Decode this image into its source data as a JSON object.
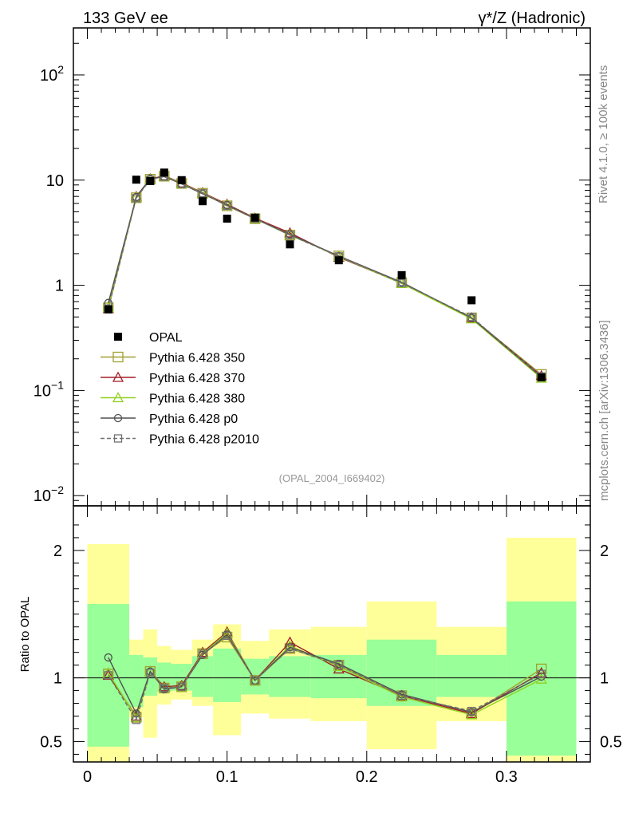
{
  "header": {
    "left_title": "133 GeV ee",
    "right_title": "γ*/Z (Hadronic)",
    "side_label_top": "Rivet 4.1.0, ≥ 100k events",
    "side_label_bottom": "mcplots.cern.ch [arXiv:1306.3436]",
    "analysis_id": "(OPAL_2004_I669402)"
  },
  "colors": {
    "data": "#000000",
    "p350": "#a0a030",
    "p370": "#a01e28",
    "p380": "#90d020",
    "p0": "#505050",
    "p2010": "#707070",
    "band_green": "#99ff99",
    "band_yellow": "#ffff99"
  },
  "chart_data": [
    {
      "type": "scatter",
      "panel": "main",
      "yscale": "log",
      "xlim": [
        -0.01,
        0.36
      ],
      "ylim": [
        0.008,
        280
      ],
      "y_ticks": [
        {
          "base": "10",
          "exp": "2",
          "value": 100
        },
        {
          "base": "10",
          "exp": "",
          "value": 10
        },
        {
          "base": "1",
          "exp": "",
          "value": 1
        },
        {
          "base": "10",
          "exp": "−1",
          "value": 0.1
        },
        {
          "base": "10",
          "exp": "−2",
          "value": 0.01
        }
      ],
      "x": [
        0.015,
        0.035,
        0.045,
        0.055,
        0.0675,
        0.0825,
        0.1,
        0.12,
        0.145,
        0.18,
        0.225,
        0.275,
        0.325
      ],
      "series": [
        {
          "name": "OPAL",
          "key": "data",
          "marker": "filled-square",
          "values": [
            0.59,
            10.1,
            9.8,
            11.8,
            10.0,
            6.3,
            4.3,
            4.4,
            2.45,
            1.73,
            1.25,
            0.72,
            0.133
          ]
        },
        {
          "name": "Pythia 6.428 350",
          "key": "p350",
          "marker": "open-square",
          "values": [
            0.61,
            6.8,
            10.2,
            10.9,
            9.3,
            7.5,
            5.7,
            4.3,
            3.0,
            1.9,
            1.06,
            0.49,
            0.142
          ]
        },
        {
          "name": "Pythia 6.428 370",
          "key": "p370",
          "marker": "open-triangle",
          "values": [
            0.6,
            7.0,
            10.3,
            11.0,
            9.4,
            7.6,
            5.9,
            4.35,
            3.15,
            1.85,
            1.05,
            0.49,
            0.138
          ]
        },
        {
          "name": "Pythia 6.428 380",
          "key": "p380",
          "marker": "open-triangle",
          "values": [
            0.61,
            6.9,
            10.2,
            10.9,
            9.3,
            7.5,
            5.8,
            4.3,
            3.05,
            1.88,
            1.04,
            0.48,
            0.131
          ]
        },
        {
          "name": "Pythia 6.428 p0",
          "key": "p0",
          "marker": "open-circle",
          "values": [
            0.68,
            6.9,
            10.3,
            10.8,
            9.2,
            7.4,
            5.8,
            4.3,
            3.05,
            1.9,
            1.07,
            0.49,
            0.134
          ]
        },
        {
          "name": "Pythia 6.428 p2010",
          "key": "p2010",
          "marker": "open-square-dashed",
          "values": [
            0.6,
            6.75,
            10.1,
            10.8,
            9.2,
            7.5,
            5.7,
            4.3,
            3.0,
            1.88,
            1.05,
            0.5,
            0.136
          ]
        }
      ]
    },
    {
      "type": "scatter",
      "panel": "ratio",
      "ylabel": "Ratio to OPAL",
      "xlim": [
        -0.01,
        0.36
      ],
      "ylim": [
        0.34,
        2.35
      ],
      "y_ticks": [
        "0.5",
        "1",
        "2"
      ],
      "x_ticks": [
        "0",
        "0.1",
        "0.2",
        "0.3"
      ],
      "bins": [
        {
          "lo": 0.0,
          "hi": 0.03,
          "green": [
            0.46,
            1.58
          ],
          "yellow": [
            0.34,
            2.05
          ]
        },
        {
          "lo": 0.03,
          "hi": 0.04,
          "green": [
            0.77,
            1.18
          ],
          "yellow": [
            0.69,
            1.3
          ]
        },
        {
          "lo": 0.04,
          "hi": 0.05,
          "green": [
            0.86,
            1.16
          ],
          "yellow": [
            0.53,
            1.38
          ]
        },
        {
          "lo": 0.05,
          "hi": 0.06,
          "green": [
            0.89,
            1.12
          ],
          "yellow": [
            0.79,
            1.25
          ]
        },
        {
          "lo": 0.06,
          "hi": 0.075,
          "green": [
            0.9,
            1.11
          ],
          "yellow": [
            0.83,
            1.22
          ]
        },
        {
          "lo": 0.075,
          "hi": 0.09,
          "green": [
            0.85,
            1.17
          ],
          "yellow": [
            0.78,
            1.3
          ]
        },
        {
          "lo": 0.09,
          "hi": 0.11,
          "green": [
            0.81,
            1.23
          ],
          "yellow": [
            0.55,
            1.42
          ]
        },
        {
          "lo": 0.11,
          "hi": 0.13,
          "green": [
            0.87,
            1.15
          ],
          "yellow": [
            0.72,
            1.29
          ]
        },
        {
          "lo": 0.13,
          "hi": 0.16,
          "green": [
            0.85,
            1.17
          ],
          "yellow": [
            0.68,
            1.38
          ]
        },
        {
          "lo": 0.16,
          "hi": 0.2,
          "green": [
            0.84,
            1.18
          ],
          "yellow": [
            0.66,
            1.4
          ]
        },
        {
          "lo": 0.2,
          "hi": 0.25,
          "green": [
            0.78,
            1.3
          ],
          "yellow": [
            0.44,
            1.6
          ]
        },
        {
          "lo": 0.25,
          "hi": 0.3,
          "green": [
            0.85,
            1.18
          ],
          "yellow": [
            0.66,
            1.4
          ]
        },
        {
          "lo": 0.3,
          "hi": 0.35,
          "green": [
            0.39,
            1.6
          ],
          "yellow": [
            0.34,
            2.1
          ]
        }
      ],
      "series": [
        {
          "name": "Pythia 6.428 350",
          "key": "p350",
          "marker": "open-square",
          "values": [
            1.03,
            0.69,
            1.05,
            0.92,
            0.93,
            1.19,
            1.32,
            0.98,
            1.23,
            1.1,
            0.86,
            0.72,
            1.07
          ]
        },
        {
          "name": "Pythia 6.428 370",
          "key": "p370",
          "marker": "open-triangle",
          "values": [
            1.02,
            0.7,
            1.05,
            0.93,
            0.94,
            1.2,
            1.36,
            0.98,
            1.28,
            1.07,
            0.86,
            0.72,
            1.04
          ]
        },
        {
          "name": "Pythia 6.428 380",
          "key": "p380",
          "marker": "open-triangle",
          "values": [
            1.04,
            0.69,
            1.05,
            0.92,
            0.93,
            1.19,
            1.35,
            0.98,
            1.25,
            1.09,
            0.85,
            0.71,
            0.99
          ]
        },
        {
          "name": "Pythia 6.428 p0",
          "key": "p0",
          "marker": "open-circle",
          "values": [
            1.16,
            0.72,
            1.05,
            0.91,
            0.93,
            1.18,
            1.34,
            0.98,
            1.24,
            1.11,
            0.87,
            0.73,
            1.01
          ]
        },
        {
          "name": "Pythia 6.428 p2010",
          "key": "p2010",
          "marker": "open-square-dashed",
          "values": [
            1.02,
            0.67,
            1.04,
            0.92,
            0.93,
            1.19,
            1.33,
            0.98,
            1.23,
            1.1,
            0.86,
            0.74,
            1.03
          ]
        }
      ]
    }
  ]
}
